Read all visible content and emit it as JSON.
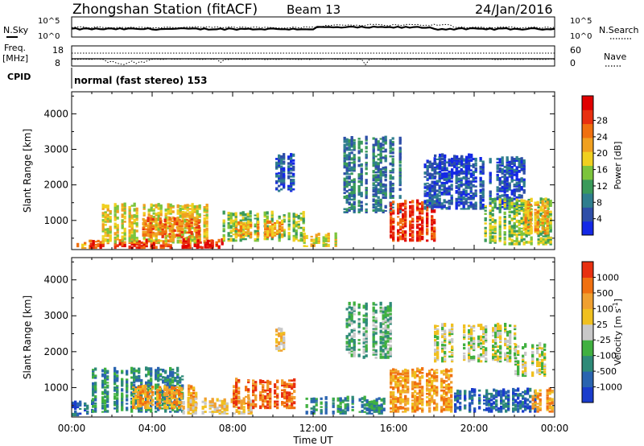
{
  "header": {
    "station": "Zhongshan Station (fitACF)",
    "beam": "Beam 13",
    "date": "24/Jan/2016"
  },
  "panels": {
    "nsky_label": "N.Sky",
    "nsky_ticks": [
      "10^5",
      "10^0"
    ],
    "nsearch_label": "N.Search",
    "nsearch_ticks": [
      "10^5",
      "10^0"
    ],
    "freq_label": [
      "Freq.",
      "[MHz]"
    ],
    "freq_ticks": [
      "18",
      "8"
    ],
    "nave_label": "Nave",
    "nave_ticks": [
      "60",
      "0"
    ],
    "cpid_label": "CPID",
    "cpid_text": "normal (fast stereo) 153"
  },
  "chart_data": [
    {
      "type": "heatmap",
      "title": "",
      "parameter": "Power",
      "ylabel": "Slant Range [km]",
      "xlabel": "",
      "ylim": [
        180,
        4620
      ],
      "xlim": [
        0,
        24
      ],
      "yticks": [
        1000,
        2000,
        3000,
        4000
      ],
      "colorbar": {
        "label": "Power [dB]",
        "ticks": [
          "4",
          "8",
          "12",
          "16",
          "20",
          "24",
          "28"
        ],
        "colors": [
          "#1428e6",
          "#2e4ea8",
          "#2f7e8e",
          "#3a9a5a",
          "#7cc43c",
          "#f0d020",
          "#f0a020",
          "#f07010",
          "#e83010",
          "#e00000"
        ]
      },
      "regions": [
        {
          "t0": 0.0,
          "t1": 0.9,
          "r0": 200,
          "r1": 420,
          "level": 6
        },
        {
          "t0": 0.9,
          "t1": 7.4,
          "r0": 200,
          "r1": 420,
          "level": 8
        },
        {
          "t0": 1.5,
          "t1": 7.0,
          "r0": 350,
          "r1": 1400,
          "level": 5
        },
        {
          "t0": 3.5,
          "t1": 6.5,
          "r0": 500,
          "r1": 1000,
          "level": 7
        },
        {
          "t0": 5.5,
          "t1": 7.5,
          "r0": 210,
          "r1": 420,
          "level": 9
        },
        {
          "t0": 7.5,
          "t1": 11.5,
          "r0": 400,
          "r1": 1200,
          "level": 4
        },
        {
          "t0": 8.0,
          "t1": 10.5,
          "r0": 500,
          "r1": 950,
          "level": 6
        },
        {
          "t0": 10.0,
          "t1": 11.0,
          "r0": 1800,
          "r1": 2800,
          "level": 1
        },
        {
          "t0": 11.5,
          "t1": 13.5,
          "r0": 250,
          "r1": 600,
          "level": 5
        },
        {
          "t0": 13.5,
          "t1": 16.5,
          "r0": 1200,
          "r1": 3300,
          "level": 2
        },
        {
          "t0": 15.8,
          "t1": 18.0,
          "r0": 400,
          "r1": 1500,
          "level": 8
        },
        {
          "t0": 17.5,
          "t1": 22.5,
          "r0": 1300,
          "r1": 2700,
          "level": 1
        },
        {
          "t0": 18.0,
          "t1": 20.0,
          "r0": 2200,
          "r1": 2800,
          "level": 0
        },
        {
          "t0": 20.5,
          "t1": 23.8,
          "r0": 300,
          "r1": 1600,
          "level": 4
        },
        {
          "t0": 22.5,
          "t1": 23.9,
          "r0": 600,
          "r1": 1500,
          "level": 6
        }
      ]
    },
    {
      "type": "heatmap",
      "title": "",
      "parameter": "Velocity",
      "ylabel": "Slant Range [km]",
      "xlabel": "Time UT",
      "ylim": [
        180,
        4620
      ],
      "xlim": [
        0,
        24
      ],
      "yticks": [
        1000,
        2000,
        3000,
        4000
      ],
      "xticks": [
        "00:00",
        "04:00",
        "08:00",
        "12:00",
        "16:00",
        "20:00",
        "00:00"
      ],
      "colorbar": {
        "label": "Velocity [m s^-1]",
        "ticks": [
          "1000",
          "500",
          "100",
          "25",
          "-25",
          "-100",
          "-500",
          "-1000"
        ],
        "colors": [
          "#1a3ccc",
          "#2a64b0",
          "#2e8a78",
          "#40b040",
          "#c8c8c8",
          "#f0c020",
          "#f0a030",
          "#f07010",
          "#e83010"
        ]
      },
      "regions": [
        {
          "t0": 0.0,
          "t1": 1.0,
          "r0": 200,
          "r1": 600,
          "level": 1
        },
        {
          "t0": 1.0,
          "t1": 5.5,
          "r0": 300,
          "r1": 1500,
          "level": 2
        },
        {
          "t0": 3.0,
          "t1": 6.5,
          "r0": 400,
          "r1": 1000,
          "level": 6
        },
        {
          "t0": 5.5,
          "t1": 9.0,
          "r0": 250,
          "r1": 700,
          "level": 5
        },
        {
          "t0": 8.0,
          "t1": 11.0,
          "r0": 400,
          "r1": 1200,
          "level": 7
        },
        {
          "t0": 10.0,
          "t1": 11.0,
          "r0": 2000,
          "r1": 2600,
          "level": 5
        },
        {
          "t0": 11.5,
          "t1": 15.5,
          "r0": 250,
          "r1": 700,
          "level": 2
        },
        {
          "t0": 13.5,
          "t1": 16.0,
          "r0": 1800,
          "r1": 3300,
          "level": 3
        },
        {
          "t0": 15.8,
          "t1": 19.0,
          "r0": 300,
          "r1": 1500,
          "level": 6
        },
        {
          "t0": 18.0,
          "t1": 22.0,
          "r0": 1700,
          "r1": 2700,
          "level": 4
        },
        {
          "t0": 22.0,
          "t1": 23.8,
          "r0": 1300,
          "r1": 2200,
          "level": 4
        },
        {
          "t0": 19.0,
          "t1": 23.0,
          "r0": 300,
          "r1": 900,
          "level": 1
        },
        {
          "t0": 22.5,
          "t1": 23.9,
          "r0": 300,
          "r1": 900,
          "level": 6
        }
      ]
    }
  ]
}
